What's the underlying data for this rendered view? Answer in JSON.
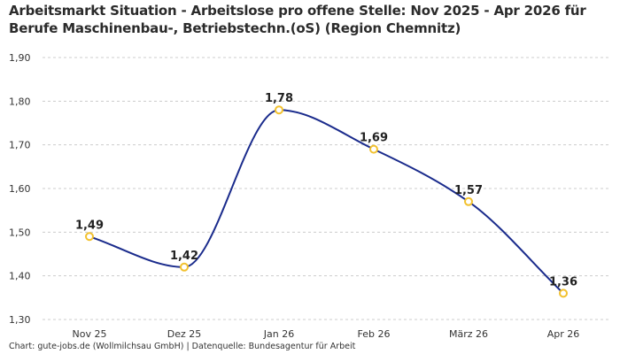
{
  "title_lines": [
    "Arbeitsmarkt Situation - Arbeitslose pro offene Stelle: Nov 2025 - Apr 2026 für",
    "Berufe Maschinenbau-, Betriebstechn.(oS) (Region Chemnitz)"
  ],
  "source": "Chart: gute-jobs.de (Wollmilchsau GmbH) | Datenquelle: Bundesagentur für Arbeit",
  "colors": {
    "line": "#1a2b8c",
    "marker": "#f2c12e",
    "grid": "#cccccc"
  },
  "chart_data": {
    "type": "line",
    "title": "Arbeitsmarkt Situation - Arbeitslose pro offene Stelle: Nov 2025 - Apr 2026 für Berufe Maschinenbau-, Betriebstechn.(oS) (Region Chemnitz)",
    "xlabel": "",
    "ylabel": "",
    "categories": [
      "Nov 25",
      "Dez 25",
      "Jan 26",
      "Feb 26",
      "März 26",
      "Apr 26"
    ],
    "values": [
      1.49,
      1.42,
      1.78,
      1.69,
      1.57,
      1.36
    ],
    "data_labels": [
      "1,49",
      "1,42",
      "1,78",
      "1,69",
      "1,57",
      "1,36"
    ],
    "ylim": [
      1.3,
      1.9
    ],
    "yticks": [
      1.3,
      1.4,
      1.5,
      1.6,
      1.7,
      1.8,
      1.9
    ],
    "ytick_labels": [
      "1,30",
      "1,40",
      "1,50",
      "1,60",
      "1,70",
      "1,80",
      "1,90"
    ],
    "grid": true,
    "smooth": true,
    "legend": "none"
  }
}
